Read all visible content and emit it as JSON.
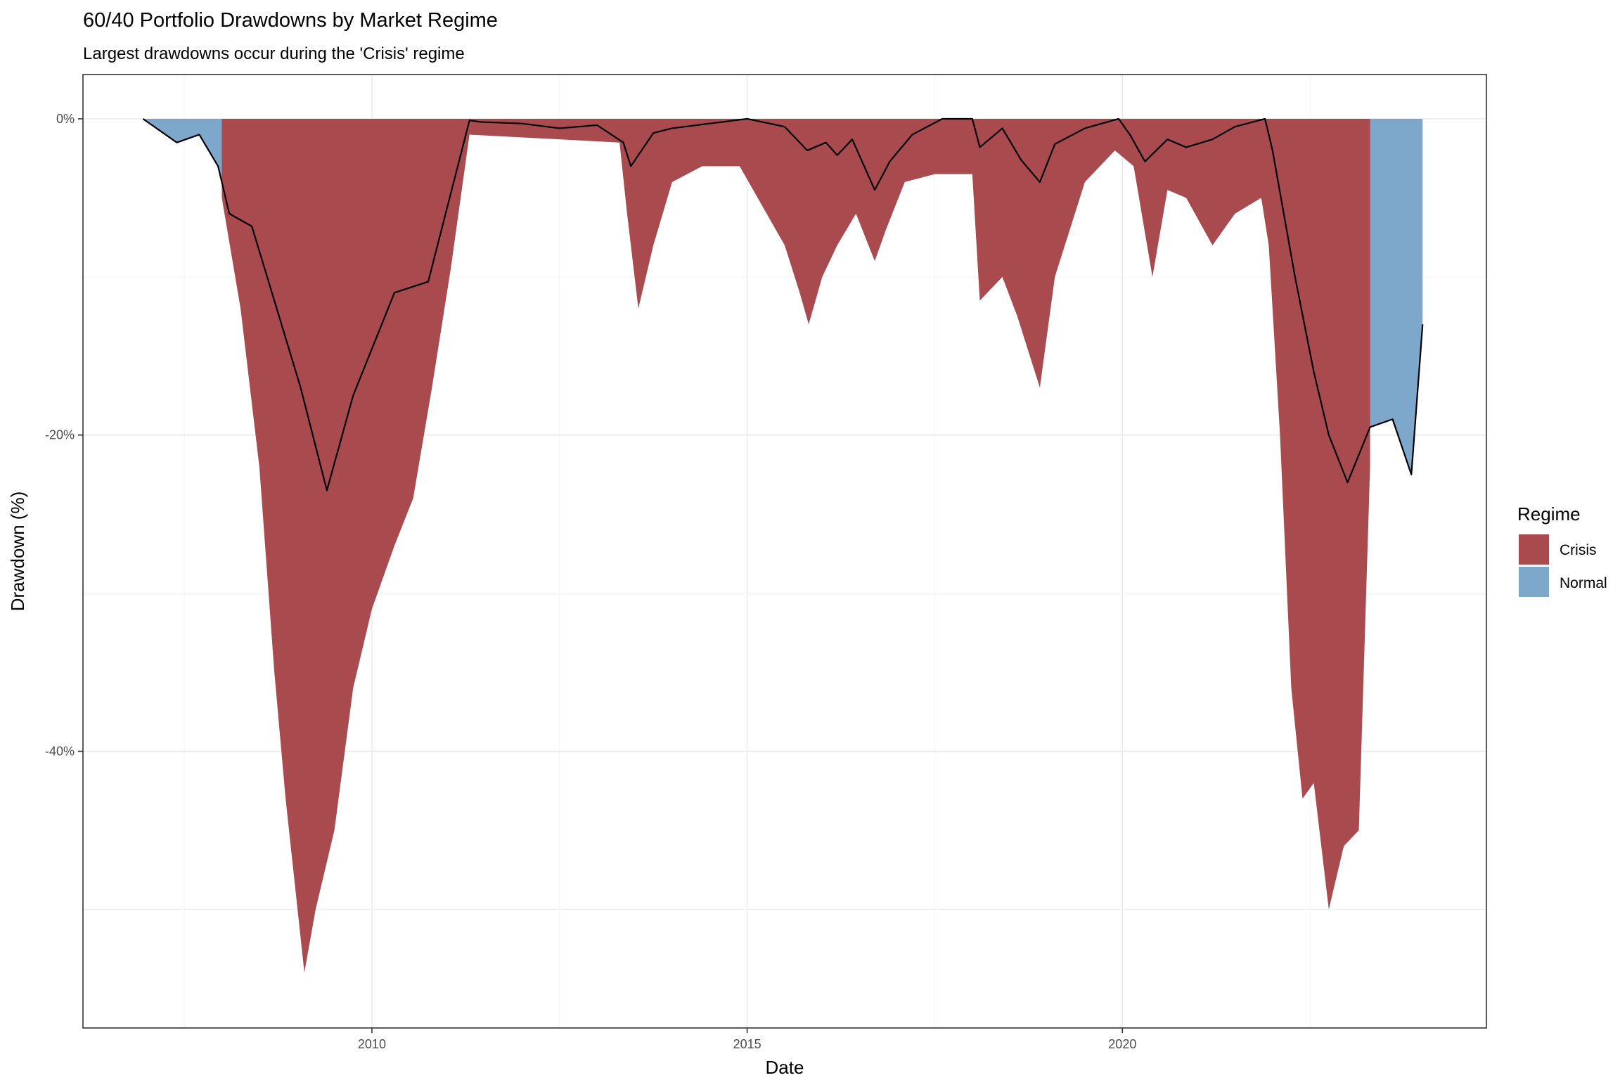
{
  "chart_data": {
    "type": "area",
    "title": "60/40 Portfolio Drawdowns by Market Regime",
    "subtitle": "Largest drawdowns occur during the 'Crisis' regime",
    "xlabel": "Date",
    "ylabel": "Drawdown (%)",
    "xlim": [
      2006.15,
      2024.85
    ],
    "ylim": [
      -57.5,
      2.8
    ],
    "x_ticks": [
      2010,
      2015,
      2020
    ],
    "x_tick_labels": [
      "2010",
      "2015",
      "2020"
    ],
    "y_ticks": [
      0,
      -20,
      -40
    ],
    "y_tick_labels": [
      "0%",
      "-20%",
      "-40%"
    ],
    "grid": true,
    "legend": {
      "title": "Regime",
      "position": "right",
      "entries": [
        {
          "name": "Crisis",
          "color": "#A94A4F"
        },
        {
          "name": "Normal",
          "color": "#7DA7CB"
        }
      ]
    },
    "colors": {
      "crisis": "#A94A4F",
      "normal": "#7DA7CB",
      "line": "#000000"
    },
    "series": [
      {
        "name": "Normal",
        "x": [
          2006.95,
          2007.4,
          2007.7,
          2007.95,
          2008.1,
          2008.4,
          2008.7,
          2009.05,
          2009.4,
          2009.75,
          2010.3,
          2010.75,
          2011.3,
          2011.45,
          2012.0,
          2012.5,
          2013.0,
          2013.35,
          2013.45,
          2013.75,
          2014.0,
          2014.5,
          2015.0,
          2015.5,
          2015.8,
          2016.05,
          2016.2,
          2016.4,
          2016.7,
          2016.9,
          2017.2,
          2017.6,
          2018.0,
          2018.1,
          2018.4,
          2018.65,
          2018.9,
          2019.1,
          2019.5,
          2019.95,
          2020.1,
          2020.3,
          2020.6,
          2020.85,
          2021.2,
          2021.5,
          2021.9,
          2022.0,
          2022.3,
          2022.55,
          2022.75,
          2023.0,
          2023.3,
          2023.6,
          2023.85,
          2024.0
        ],
        "values": [
          0.0,
          -1.5,
          -1.0,
          -3.0,
          -6.0,
          -6.8,
          -11.5,
          -17.0,
          -23.5,
          -17.5,
          -11.0,
          -10.3,
          -0.1,
          -0.2,
          -0.3,
          -0.6,
          -0.4,
          -1.5,
          -3.0,
          -0.9,
          -0.6,
          -0.3,
          0.0,
          -0.5,
          -2.0,
          -1.5,
          -2.3,
          -1.3,
          -4.5,
          -2.7,
          -1.0,
          0.0,
          0.0,
          -1.8,
          -0.6,
          -2.6,
          -4.0,
          -1.6,
          -0.6,
          0.0,
          -1.0,
          -2.7,
          -1.3,
          -1.8,
          -1.3,
          -0.5,
          0.0,
          -2.0,
          -10.0,
          -16.0,
          -20.0,
          -23.0,
          -19.5,
          -19.0,
          -22.5,
          -13.0
        ]
      },
      {
        "name": "Crisis",
        "x": [
          2008.0,
          2008.25,
          2008.5,
          2008.7,
          2008.85,
          2009.1,
          2009.25,
          2009.5,
          2009.75,
          2010.0,
          2010.3,
          2010.55,
          2010.8,
          2011.05,
          2011.3,
          2013.3,
          2013.4,
          2013.55,
          2013.75,
          2014.0,
          2014.4,
          2014.9,
          2015.5,
          2015.7,
          2015.82,
          2016.0,
          2016.2,
          2016.45,
          2016.7,
          2016.85,
          2017.1,
          2017.5,
          2018.0,
          2018.1,
          2018.4,
          2018.6,
          2018.9,
          2019.1,
          2019.5,
          2019.9,
          2020.15,
          2020.4,
          2020.6,
          2020.85,
          2021.2,
          2021.5,
          2021.85,
          2021.95,
          2022.1,
          2022.25,
          2022.4,
          2022.55,
          2022.75,
          2022.95,
          2023.15,
          2023.3
        ],
        "values": [
          -5.0,
          -12.0,
          -22.0,
          -35.0,
          -43.0,
          -54.0,
          -50.0,
          -45.0,
          -36.0,
          -31.0,
          -27.0,
          -24.0,
          -17.0,
          -9.5,
          -1.0,
          -1.5,
          -6.0,
          -12.0,
          -8.0,
          -4.0,
          -3.0,
          -3.0,
          -8.0,
          -11.0,
          -13.0,
          -10.0,
          -8.0,
          -6.0,
          -9.0,
          -7.0,
          -4.0,
          -3.5,
          -3.5,
          -11.5,
          -10.0,
          -12.5,
          -17.0,
          -10.0,
          -4.0,
          -2.0,
          -3.0,
          -10.0,
          -4.5,
          -5.0,
          -8.0,
          -6.0,
          -5.0,
          -8.0,
          -20.0,
          -36.0,
          -43.0,
          -42.0,
          -50.0,
          -46.0,
          -45.0,
          -22.0
        ]
      }
    ]
  }
}
